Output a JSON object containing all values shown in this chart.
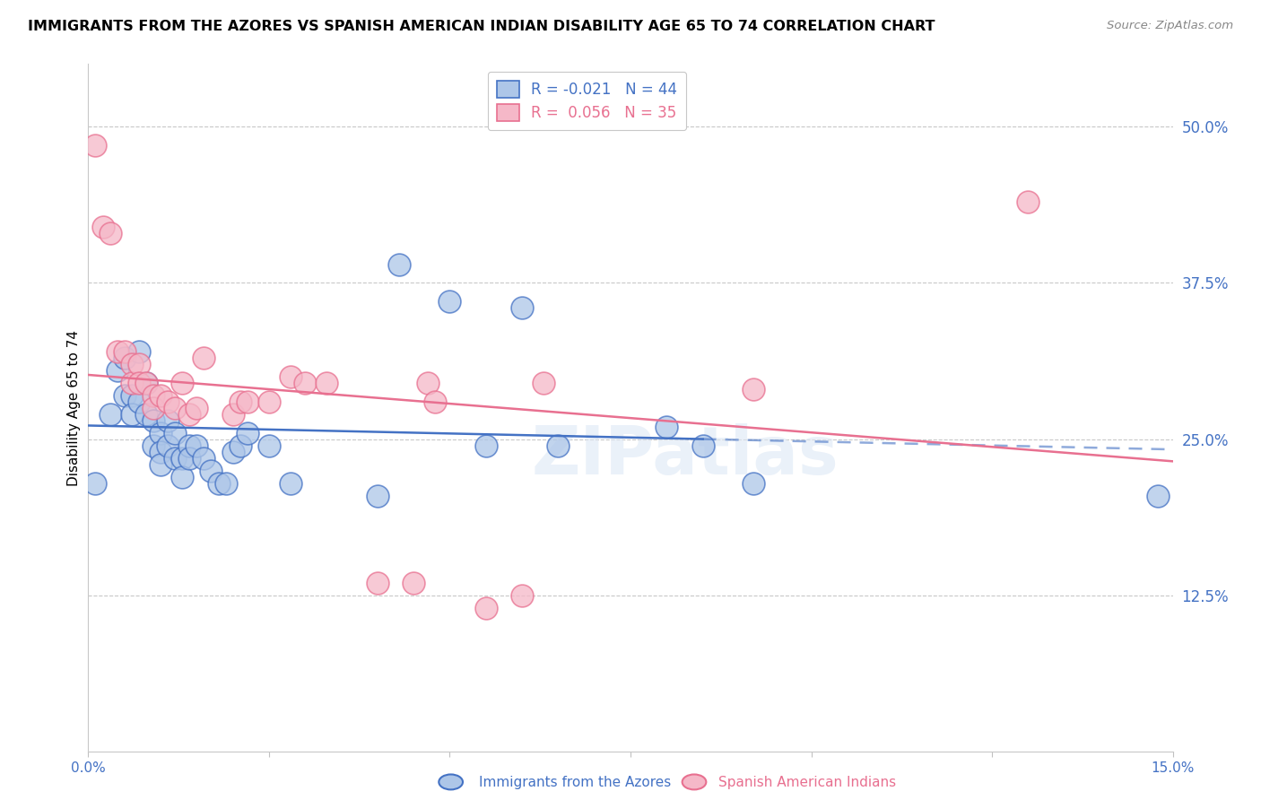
{
  "title": "IMMIGRANTS FROM THE AZORES VS SPANISH AMERICAN INDIAN DISABILITY AGE 65 TO 74 CORRELATION CHART",
  "source": "Source: ZipAtlas.com",
  "ylabel": "Disability Age 65 to 74",
  "ylabel_right_ticks": [
    "50.0%",
    "37.5%",
    "25.0%",
    "12.5%"
  ],
  "ylabel_right_vals": [
    0.5,
    0.375,
    0.25,
    0.125
  ],
  "xmin": 0.0,
  "xmax": 0.15,
  "ymin": 0.0,
  "ymax": 0.55,
  "legend_blue_r": "-0.021",
  "legend_blue_n": "44",
  "legend_pink_r": "0.056",
  "legend_pink_n": "35",
  "blue_color": "#adc6e8",
  "pink_color": "#f5b8c8",
  "trend_blue_color": "#4472c4",
  "trend_pink_color": "#e87090",
  "trend_blue_solid_end": 0.085,
  "trend_blue_dashed_start": 0.085,
  "axis_color": "#4472c4",
  "watermark": "ZIPatlas",
  "blue_x": [
    0.001,
    0.003,
    0.004,
    0.005,
    0.005,
    0.006,
    0.006,
    0.007,
    0.007,
    0.008,
    0.008,
    0.009,
    0.009,
    0.01,
    0.01,
    0.01,
    0.011,
    0.011,
    0.012,
    0.012,
    0.013,
    0.013,
    0.014,
    0.014,
    0.015,
    0.016,
    0.017,
    0.018,
    0.019,
    0.02,
    0.021,
    0.022,
    0.025,
    0.028,
    0.04,
    0.043,
    0.05,
    0.055,
    0.06,
    0.065,
    0.08,
    0.085,
    0.092,
    0.148
  ],
  "blue_y": [
    0.215,
    0.27,
    0.305,
    0.285,
    0.315,
    0.285,
    0.27,
    0.32,
    0.28,
    0.27,
    0.295,
    0.265,
    0.245,
    0.255,
    0.24,
    0.23,
    0.265,
    0.245,
    0.235,
    0.255,
    0.235,
    0.22,
    0.245,
    0.235,
    0.245,
    0.235,
    0.225,
    0.215,
    0.215,
    0.24,
    0.245,
    0.255,
    0.245,
    0.215,
    0.205,
    0.39,
    0.36,
    0.245,
    0.355,
    0.245,
    0.26,
    0.245,
    0.215,
    0.205
  ],
  "pink_x": [
    0.001,
    0.002,
    0.003,
    0.004,
    0.005,
    0.006,
    0.006,
    0.007,
    0.007,
    0.008,
    0.009,
    0.009,
    0.01,
    0.011,
    0.012,
    0.013,
    0.014,
    0.015,
    0.016,
    0.02,
    0.021,
    0.022,
    0.025,
    0.028,
    0.03,
    0.033,
    0.04,
    0.045,
    0.047,
    0.048,
    0.055,
    0.06,
    0.063,
    0.092,
    0.13
  ],
  "pink_y": [
    0.485,
    0.42,
    0.415,
    0.32,
    0.32,
    0.31,
    0.295,
    0.31,
    0.295,
    0.295,
    0.285,
    0.275,
    0.285,
    0.28,
    0.275,
    0.295,
    0.27,
    0.275,
    0.315,
    0.27,
    0.28,
    0.28,
    0.28,
    0.3,
    0.295,
    0.295,
    0.135,
    0.135,
    0.295,
    0.28,
    0.115,
    0.125,
    0.295,
    0.29,
    0.44
  ]
}
